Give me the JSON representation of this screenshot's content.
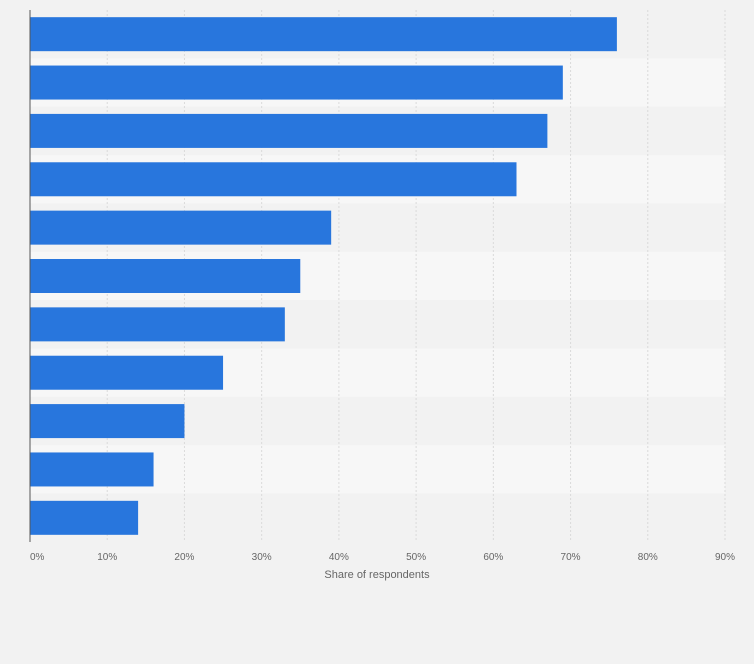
{
  "colors": {
    "page_background": "#f2f2f2",
    "band_dark": "#f2f2f2",
    "band_light": "#f7f7f7",
    "bar": "#2876dd",
    "gridline": "#dadada",
    "axis_line": "#555555",
    "text": "#666666"
  },
  "chart_data": {
    "type": "bar",
    "orientation": "horizontal",
    "categories": [
      "",
      "",
      "",
      "",
      "",
      "",
      "",
      "",
      "",
      "",
      ""
    ],
    "values": [
      76,
      69,
      67,
      63,
      39,
      35,
      33,
      25,
      20,
      16,
      14
    ],
    "unit": "%",
    "xlabel": "Share of respondents",
    "ylabel": "",
    "xlim": [
      0,
      90
    ],
    "x_ticks": [
      0,
      10,
      20,
      30,
      40,
      50,
      60,
      70,
      80,
      90
    ],
    "x_tick_labels": [
      "0%",
      "10%",
      "20%",
      "30%",
      "40%",
      "50%",
      "60%",
      "70%",
      "80%",
      "90%"
    ],
    "grid": true,
    "alternating_row_bands": true,
    "legend": "none"
  }
}
